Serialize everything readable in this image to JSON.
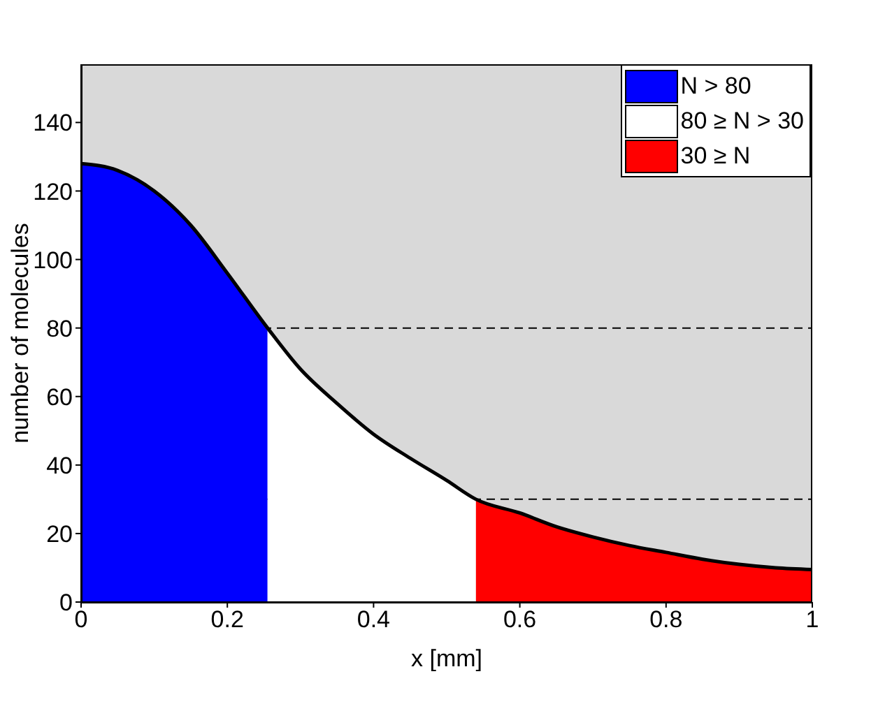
{
  "chart_data": {
    "type": "area",
    "xlabel": "x [mm]",
    "ylabel": "number of molecules",
    "xlim": [
      0,
      1
    ],
    "xticks": [
      0,
      0.2,
      0.4,
      0.6,
      0.8,
      1
    ],
    "ylim": [
      0,
      157
    ],
    "yticks": [
      0,
      20,
      40,
      60,
      80,
      100,
      120,
      140
    ],
    "legend": "top right",
    "series": [
      {
        "name": "N > 80",
        "color": "#0000ff",
        "x": [
          0,
          0.05,
          0.1,
          0.15,
          0.2,
          0.255
        ],
        "values": [
          128,
          126,
          120,
          110,
          96,
          80
        ]
      },
      {
        "name": "80 ≥ N > 30",
        "color": "#ffffff",
        "x": [
          0.255,
          0.3,
          0.35,
          0.4,
          0.45,
          0.5,
          0.54
        ],
        "values": [
          80,
          68,
          58,
          49,
          42,
          35.5,
          30
        ]
      },
      {
        "name": "30 ≥ N",
        "color": "#ff0000",
        "x": [
          0.54,
          0.6,
          0.65,
          0.7,
          0.75,
          0.8,
          0.85,
          0.9,
          0.95,
          1
        ],
        "values": [
          30,
          26,
          22,
          19,
          16.5,
          14.5,
          12.5,
          11,
          10,
          9.5
        ]
      },
      {
        "type": "line",
        "color": "#000000",
        "x": [
          0,
          0.05,
          0.1,
          0.15,
          0.2,
          0.255,
          0.3,
          0.35,
          0.4,
          0.45,
          0.5,
          0.54,
          0.6,
          0.65,
          0.7,
          0.75,
          0.8,
          0.85,
          0.9,
          0.95,
          1
        ],
        "values": [
          128,
          126,
          120,
          110,
          96,
          80,
          68,
          58,
          49,
          42,
          35.5,
          30,
          26,
          22,
          19,
          16.5,
          14.5,
          12.5,
          11,
          10,
          9.5
        ]
      }
    ],
    "ref_lines": [
      {
        "axis": "y",
        "value": 80,
        "line_style": "dashed",
        "color": "#000000"
      },
      {
        "axis": "y",
        "value": 30,
        "line_style": "dashed",
        "color": "#000000"
      }
    ]
  }
}
